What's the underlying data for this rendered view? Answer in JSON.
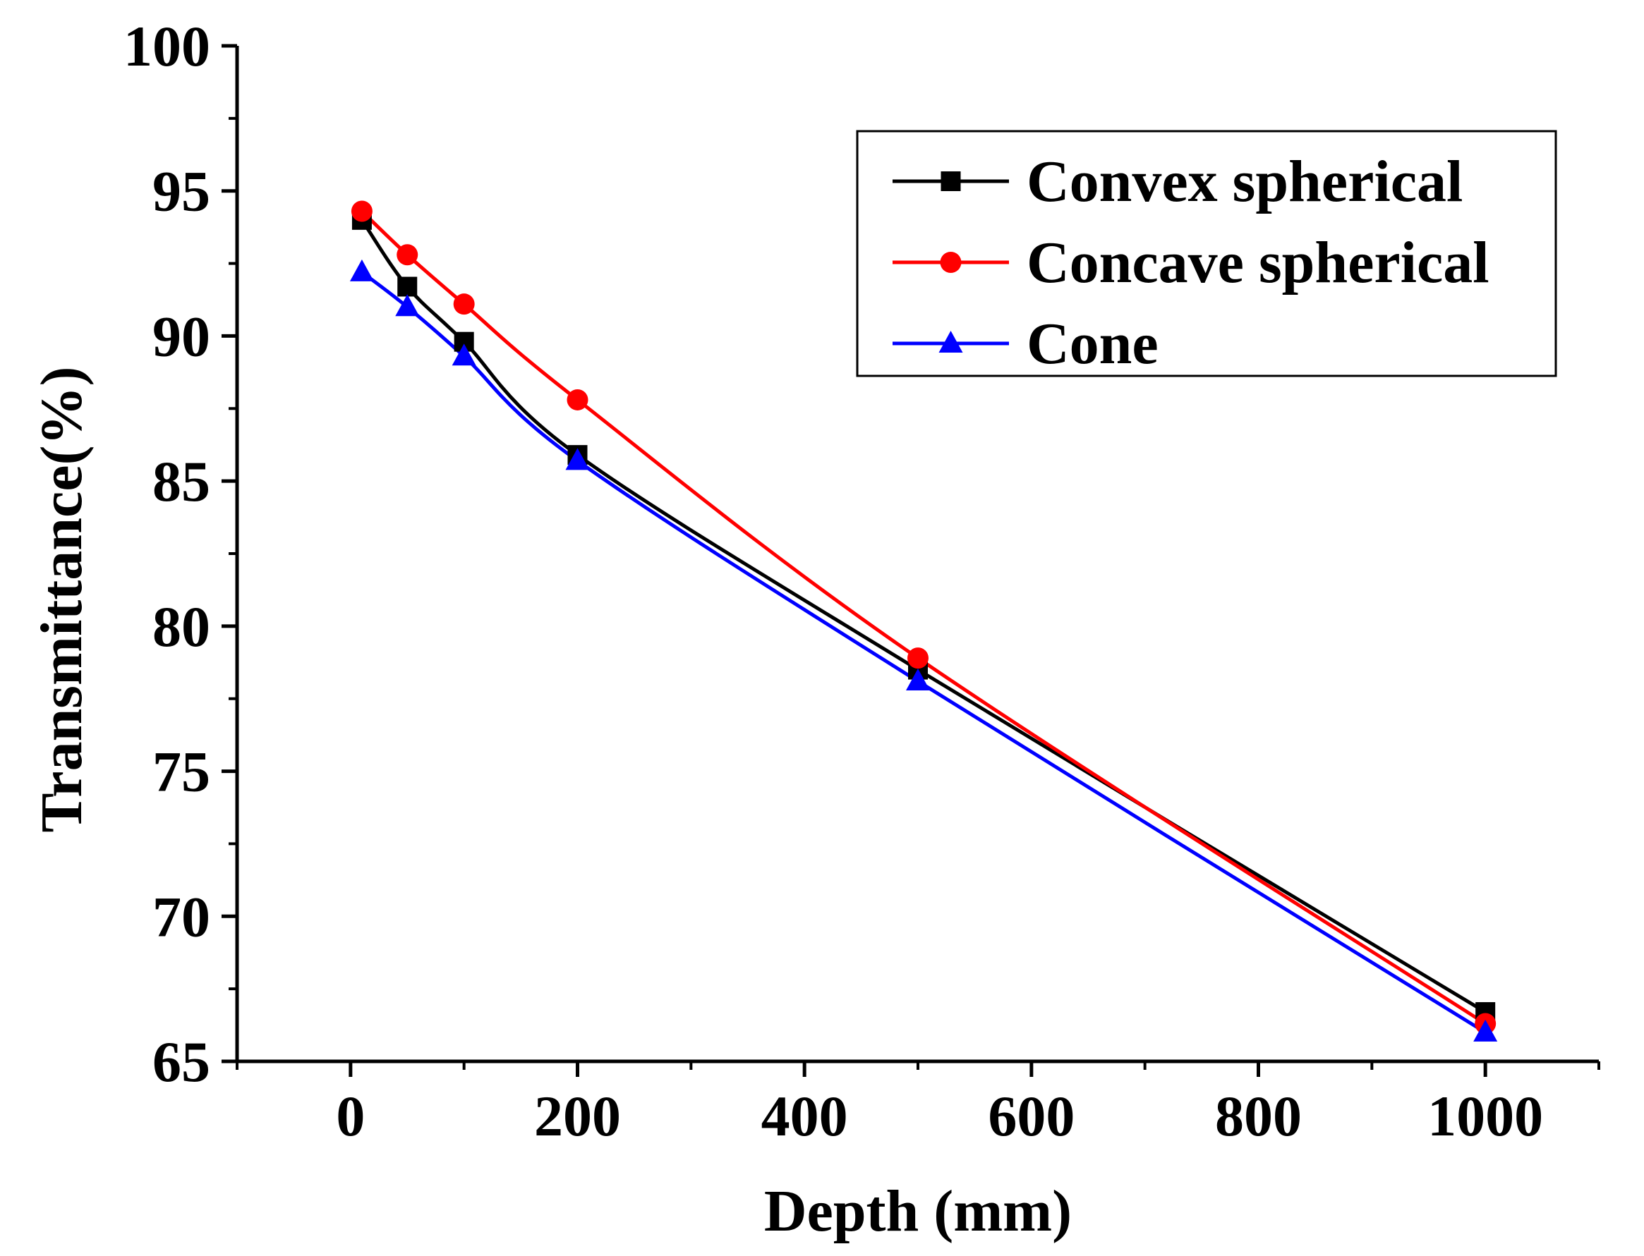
{
  "chart_data": {
    "type": "line",
    "title": "",
    "xlabel": "Depth (mm)",
    "ylabel": "Transmittance(%)",
    "xlim": [
      -100,
      1100
    ],
    "ylim": [
      65,
      100
    ],
    "grid": false,
    "legend_position": "top-right",
    "x_ticks": [
      0,
      200,
      400,
      600,
      800,
      1000
    ],
    "y_ticks": [
      65,
      70,
      75,
      80,
      85,
      90,
      95,
      100
    ],
    "x_tick_labels": [
      "0",
      "200",
      "400",
      "600",
      "800",
      "1000"
    ],
    "y_tick_labels": [
      "65",
      "70",
      "75",
      "80",
      "85",
      "90",
      "95",
      "100"
    ],
    "series": [
      {
        "name": "Convex spherical",
        "color": "#000000",
        "marker": "square",
        "x": [
          10,
          50,
          100,
          200,
          500,
          1000
        ],
        "y": [
          94.0,
          91.7,
          89.8,
          85.9,
          78.5,
          66.7
        ]
      },
      {
        "name": "Concave spherical",
        "color": "#ff0000",
        "marker": "circle",
        "x": [
          10,
          50,
          100,
          200,
          500,
          1000
        ],
        "y": [
          94.3,
          92.8,
          91.1,
          87.8,
          78.9,
          66.3
        ]
      },
      {
        "name": "Cone",
        "color": "#0000ff",
        "marker": "triangle",
        "x": [
          10,
          50,
          100,
          200,
          500,
          1000
        ],
        "y": [
          92.2,
          91.0,
          89.3,
          85.7,
          78.1,
          66.0
        ]
      }
    ]
  }
}
